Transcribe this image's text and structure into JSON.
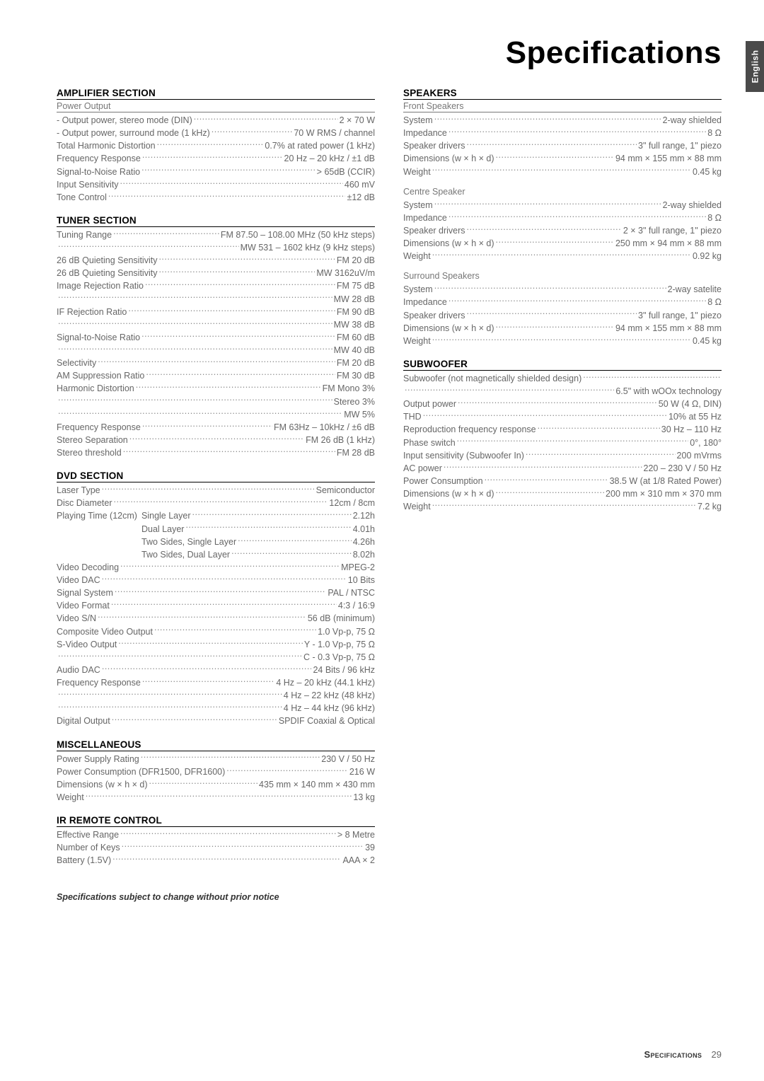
{
  "page": {
    "title": "Specifications",
    "side_tab": "English",
    "footer_label": "Specifications",
    "footer_page": "29",
    "change_notice": "Specifications subject to change without prior notice"
  },
  "left": {
    "amplifier": {
      "heading": "AMPLIFIER SECTION",
      "subheading": "Power Output",
      "rows": [
        {
          "label": "- Output power, stereo mode (DIN)",
          "value": "2 × 70 W"
        },
        {
          "label": "- Output power, surround mode (1 kHz)",
          "value": "70 W RMS / channel"
        },
        {
          "label": "Total Harmonic Distortion",
          "value": "0.7% at rated power (1 kHz)"
        },
        {
          "label": "Frequency Response",
          "value": "20 Hz – 20 kHz / ±1 dB"
        },
        {
          "label": "Signal-to-Noise Ratio",
          "value": "> 65dB (CCIR)"
        },
        {
          "label": "Input Sensitivity",
          "value": "460 mV"
        },
        {
          "label": "Tone Control",
          "value": "±12 dB"
        }
      ]
    },
    "tuner": {
      "heading": "TUNER SECTION",
      "rows": [
        {
          "label": "Tuning Range",
          "value": "FM 87.50 – 108.00 MHz (50 kHz steps)"
        },
        {
          "label": "",
          "value": "MW 531 – 1602 kHz (9 kHz steps)"
        },
        {
          "label": "26 dB Quieting Sensitivity",
          "value": "FM 20 dB"
        },
        {
          "label": "26 dB Quieting Sensitivity",
          "value": "MW 3162uV/m"
        },
        {
          "label": "Image Rejection Ratio",
          "value": "FM 75 dB"
        },
        {
          "label": "",
          "value": "MW 28 dB"
        },
        {
          "label": "IF Rejection Ratio",
          "value": "FM 90 dB"
        },
        {
          "label": "",
          "value": "MW 38 dB"
        },
        {
          "label": "Signal-to-Noise Ratio",
          "value": "FM 60 dB"
        },
        {
          "label": "",
          "value": "MW 40 dB"
        },
        {
          "label": "Selectivity",
          "value": "FM 20 dB"
        },
        {
          "label": "AM Suppression Ratio",
          "value": "FM 30 dB"
        },
        {
          "label": "Harmonic Distortion",
          "value": "FM Mono 3%"
        },
        {
          "label": "",
          "value": "Stereo 3%"
        },
        {
          "label": "",
          "value": "MW 5%"
        },
        {
          "label": "Frequency Response",
          "value": "FM 63Hz – 10kHz / ±6 dB"
        },
        {
          "label": "Stereo Separation",
          "value": "FM 26 dB (1 kHz)"
        },
        {
          "label": "Stereo threshold",
          "value": "FM 28 dB"
        }
      ]
    },
    "dvd": {
      "heading": "DVD SECTION",
      "rows": [
        {
          "label": "Laser Type",
          "value": "Semiconductor"
        },
        {
          "label": "Disc Diameter",
          "value": "12cm / 8cm"
        },
        {
          "label": "Playing Time (12cm)",
          "indent": "Single Layer",
          "value": "2.12h"
        },
        {
          "label": "",
          "indent": "Dual Layer",
          "value": "4.01h"
        },
        {
          "label": "",
          "indent": "Two Sides, Single Layer",
          "value": "4.26h"
        },
        {
          "label": "",
          "indent": "Two Sides, Dual Layer",
          "value": "8.02h"
        },
        {
          "label": "Video Decoding",
          "value": "MPEG-2"
        },
        {
          "label": "Video DAC",
          "value": "10 Bits"
        },
        {
          "label": "Signal System",
          "value": "PAL / NTSC"
        },
        {
          "label": "Video Format",
          "value": "4:3 / 16:9"
        },
        {
          "label": "Video S/N",
          "value": "56 dB (minimum)"
        },
        {
          "label": "Composite Video Output",
          "value": "1.0 Vp-p, 75 Ω"
        },
        {
          "label": "S-Video Output",
          "value": "Y - 1.0 Vp-p, 75 Ω"
        },
        {
          "label": "",
          "value": "C - 0.3 Vp-p, 75 Ω"
        },
        {
          "label": "Audio DAC",
          "value": "24 Bits / 96 kHz"
        },
        {
          "label": "Frequency Response",
          "value": "4 Hz – 20 kHz (44.1 kHz)"
        },
        {
          "label": "",
          "value": "4 Hz – 22 kHz (48 kHz)"
        },
        {
          "label": "",
          "value": "4 Hz – 44 kHz (96 kHz)"
        },
        {
          "label": "Digital Output",
          "value": "SPDIF Coaxial & Optical"
        }
      ]
    },
    "misc": {
      "heading": "MISCELLANEOUS",
      "rows": [
        {
          "label": "Power Supply Rating",
          "value": "230 V / 50 Hz"
        },
        {
          "label": "Power Consumption (DFR1500, DFR1600)",
          "value": "216 W"
        },
        {
          "label": "Dimensions (w × h × d)",
          "value": "435 mm × 140 mm × 430 mm"
        },
        {
          "label": "Weight",
          "value": "13 kg"
        }
      ]
    },
    "ir": {
      "heading": "IR REMOTE CONTROL",
      "rows": [
        {
          "label": "Effective Range",
          "value": "> 8 Metre"
        },
        {
          "label": "Number of Keys",
          "value": "39"
        },
        {
          "label": "Battery (1.5V)",
          "value": "AAA × 2"
        }
      ]
    }
  },
  "right": {
    "speakers": {
      "heading": "SPEAKERS",
      "front": {
        "subheading": "Front Speakers",
        "rows": [
          {
            "label": "System",
            "value": "2-way shielded"
          },
          {
            "label": "Impedance",
            "value": "8 Ω"
          },
          {
            "label": "Speaker drivers",
            "value": "3\" full range, 1\" piezo"
          },
          {
            "label": "Dimensions (w × h × d)",
            "value": "94 mm × 155 mm × 88 mm"
          },
          {
            "label": "Weight",
            "value": "0.45 kg"
          }
        ]
      },
      "centre": {
        "subheading": "Centre Speaker",
        "rows": [
          {
            "label": "System",
            "value": "2-way shielded"
          },
          {
            "label": "Impedance",
            "value": "8 Ω"
          },
          {
            "label": "Speaker drivers",
            "value": "2 × 3\" full range, 1\" piezo"
          },
          {
            "label": "Dimensions (w × h × d)",
            "value": "250 mm × 94 mm × 88 mm"
          },
          {
            "label": "Weight",
            "value": "0.92 kg"
          }
        ]
      },
      "surround": {
        "subheading": "Surround Speakers",
        "rows": [
          {
            "label": "System",
            "value": "2-way satelite"
          },
          {
            "label": "Impedance",
            "value": "8 Ω"
          },
          {
            "label": "Speaker drivers",
            "value": "3\" full range, 1\" piezo"
          },
          {
            "label": "Dimensions (w × h × d)",
            "value": "94 mm × 155 mm × 88 mm"
          },
          {
            "label": "Weight",
            "value": "0.45 kg"
          }
        ]
      }
    },
    "subwoofer": {
      "heading": "SUBWOOFER",
      "rows": [
        {
          "label": "Subwoofer (not magnetically shielded design)",
          "value": ""
        },
        {
          "label": "",
          "value": "6.5\" with wOOx technology"
        },
        {
          "label": "Output power",
          "value": "50 W (4 Ω, DIN)"
        },
        {
          "label": "THD",
          "value": "10% at 55 Hz"
        },
        {
          "label": "Reproduction frequency response",
          "value": "30 Hz – 110 Hz"
        },
        {
          "label": "Phase switch",
          "value": "0°, 180°"
        },
        {
          "label": "Input sensitivity (Subwoofer In)",
          "value": "200 mVrms"
        },
        {
          "label": "AC power",
          "value": "220 – 230 V / 50 Hz"
        },
        {
          "label": "Power Consumption",
          "value": "38.5 W (at 1/8 Rated Power)"
        },
        {
          "label": "Dimensions (w × h × d)",
          "value": "200 mm × 310 mm × 370 mm"
        },
        {
          "label": "Weight",
          "value": "7.2 kg"
        }
      ]
    }
  }
}
